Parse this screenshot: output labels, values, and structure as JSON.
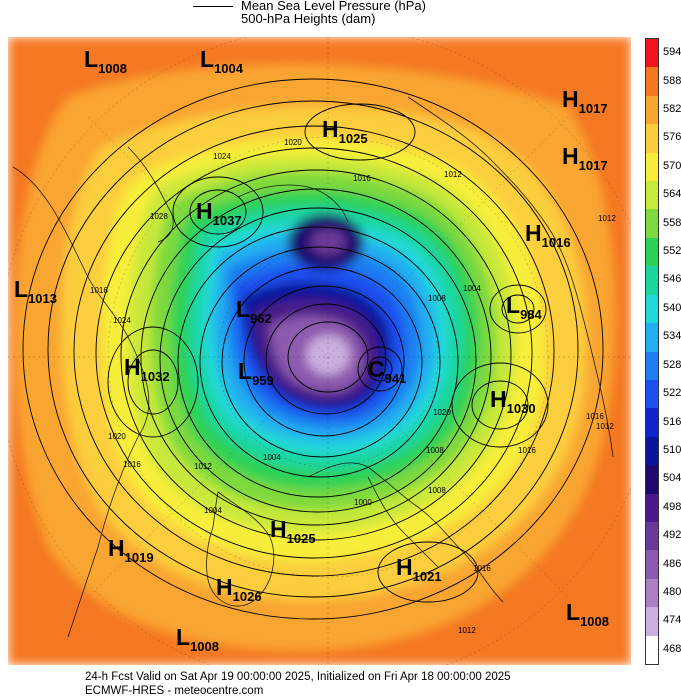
{
  "legend": {
    "mslp_label": "Mean Sea Level Pressure (hPa)",
    "height_label": "500-hPa Heights (dam)"
  },
  "colorbar": {
    "levels": [
      "594",
      "588",
      "582",
      "576",
      "570",
      "564",
      "558",
      "552",
      "546",
      "540",
      "534",
      "528",
      "522",
      "516",
      "510",
      "504",
      "498",
      "492",
      "486",
      "480",
      "474",
      "468"
    ],
    "colors": [
      "#f0141e",
      "#f57820",
      "#f9a531",
      "#fbce3e",
      "#f7ee3a",
      "#c8e83a",
      "#7ed93e",
      "#2ed157",
      "#1cd6a0",
      "#20d8d8",
      "#22aef0",
      "#1f7ef0",
      "#1c50f0",
      "#1023d0",
      "#0a149a",
      "#1e0a6e",
      "#4a1a88",
      "#6a3898",
      "#8c5aae",
      "#ab7fc4",
      "#cdaee0",
      "#ffffff"
    ]
  },
  "pressure_centers": [
    {
      "type": "L",
      "value": "1008"
    },
    {
      "type": "L",
      "value": "1004"
    },
    {
      "type": "H",
      "value": "1025"
    },
    {
      "type": "H",
      "value": "1017"
    },
    {
      "type": "H",
      "value": "1017"
    },
    {
      "type": "H",
      "value": "1037"
    },
    {
      "type": "H",
      "value": "1016"
    },
    {
      "type": "L",
      "value": "1013"
    },
    {
      "type": "L",
      "value": "962"
    },
    {
      "type": "H",
      "value": "1032"
    },
    {
      "type": "L",
      "value": "959"
    },
    {
      "type": "L",
      "value": "984"
    },
    {
      "type": "C",
      "value": "941"
    },
    {
      "type": "H",
      "value": "1030"
    },
    {
      "type": "H",
      "value": "1025"
    },
    {
      "type": "H",
      "value": "1019"
    },
    {
      "type": "H",
      "value": "1021"
    },
    {
      "type": "H",
      "value": "1026"
    },
    {
      "type": "L",
      "value": "1008"
    },
    {
      "type": "L",
      "value": "1008"
    }
  ],
  "isobar_labels": [
    "1024",
    "1020",
    "1016",
    "1012",
    "1028",
    "1016",
    "1024",
    "1012",
    "1016",
    "1008",
    "1004",
    "1000",
    "1012",
    "1004",
    "1008",
    "1020",
    "1016",
    "1012",
    "1016",
    "1020",
    "1004",
    "1008",
    "1016",
    "1012"
  ],
  "footer": {
    "valid_line": "24-h Fcst Valid on Sat Apr 19 00:00:00 2025, Initialized on Fri Apr 18 00:00:00 2025",
    "source_line": "ECMWF-HRES  - meteocentre.com"
  }
}
